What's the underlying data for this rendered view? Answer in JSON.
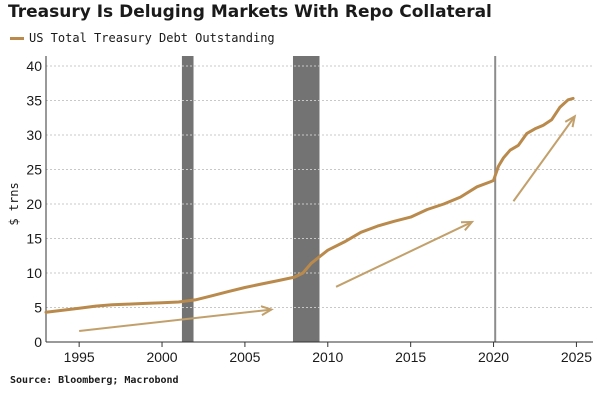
{
  "chart_data": {
    "type": "line",
    "title": "Treasury Is Deluging Markets With Repo Collateral",
    "ylabel": "$ trns",
    "xlabel": "",
    "ylim": [
      0,
      40
    ],
    "xlim": [
      1993,
      2026
    ],
    "yticks": [
      "0",
      "5",
      "10",
      "15",
      "20",
      "25",
      "30",
      "35",
      "40"
    ],
    "xticks": [
      "1995",
      "2000",
      "2005",
      "2010",
      "2015",
      "2020",
      "2025"
    ],
    "grid": true,
    "legend_position": "top-left",
    "series": [
      {
        "name": "US Total Treasury Debt Outstanding",
        "color": "#b98a4c",
        "points": [
          [
            1993.0,
            4.3
          ],
          [
            1994.0,
            4.6
          ],
          [
            1995.0,
            4.9
          ],
          [
            1996.0,
            5.2
          ],
          [
            1997.0,
            5.4
          ],
          [
            1998.0,
            5.5
          ],
          [
            1999.0,
            5.6
          ],
          [
            2000.0,
            5.7
          ],
          [
            2001.0,
            5.8
          ],
          [
            2002.0,
            6.1
          ],
          [
            2003.0,
            6.7
          ],
          [
            2004.0,
            7.3
          ],
          [
            2005.0,
            7.9
          ],
          [
            2006.0,
            8.4
          ],
          [
            2007.0,
            8.9
          ],
          [
            2008.0,
            9.4
          ],
          [
            2008.5,
            10.0
          ],
          [
            2009.0,
            11.4
          ],
          [
            2010.0,
            13.3
          ],
          [
            2011.0,
            14.5
          ],
          [
            2012.0,
            15.9
          ],
          [
            2013.0,
            16.8
          ],
          [
            2014.0,
            17.5
          ],
          [
            2015.0,
            18.1
          ],
          [
            2016.0,
            19.2
          ],
          [
            2017.0,
            20.0
          ],
          [
            2018.0,
            21.0
          ],
          [
            2019.0,
            22.5
          ],
          [
            2019.8,
            23.2
          ],
          [
            2020.0,
            23.4
          ],
          [
            2020.3,
            25.5
          ],
          [
            2020.6,
            26.7
          ],
          [
            2021.0,
            27.8
          ],
          [
            2021.5,
            28.5
          ],
          [
            2022.0,
            30.2
          ],
          [
            2022.5,
            30.9
          ],
          [
            2023.0,
            31.4
          ],
          [
            2023.5,
            32.2
          ],
          [
            2024.0,
            34.0
          ],
          [
            2024.5,
            35.1
          ],
          [
            2024.8,
            35.3
          ]
        ]
      }
    ],
    "shaded_periods": [
      {
        "start": 2001.2,
        "end": 2001.9
      },
      {
        "start": 2007.9,
        "end": 2009.5
      }
    ],
    "vertical_lines": [
      2020.1
    ],
    "annotations": [
      {
        "type": "arrow",
        "from": [
          1995.0,
          1.6
        ],
        "to": [
          2006.6,
          4.7
        ]
      },
      {
        "type": "arrow",
        "from": [
          2010.5,
          8.0
        ],
        "to": [
          2018.7,
          17.4
        ]
      },
      {
        "type": "arrow",
        "from": [
          2021.2,
          20.4
        ],
        "to": [
          2024.9,
          32.7
        ]
      }
    ],
    "arrow_color": "#c2a06b",
    "shade_color": "#737373",
    "vline_color": "#8c8c8c"
  },
  "source_text": "Source: Bloomberg; Macrobond"
}
